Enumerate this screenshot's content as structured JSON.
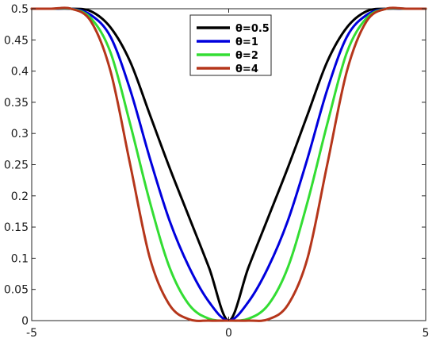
{
  "chart_data": {
    "type": "line",
    "title": "",
    "xlabel": "",
    "ylabel": "",
    "xlim": [
      -5,
      5
    ],
    "ylim": [
      0,
      0.5
    ],
    "x_ticks": [
      "-5",
      "0",
      "5"
    ],
    "y_ticks": [
      "0",
      "0.05",
      "0.1",
      "0.15",
      "0.2",
      "0.25",
      "0.3",
      "0.35",
      "0.4",
      "0.45",
      "0.5"
    ],
    "grid": false,
    "legend_position": "top-center",
    "x": [
      -5,
      -4.5,
      -4,
      -3.5,
      -3,
      -2.5,
      -2,
      -1.5,
      -1,
      -0.5,
      0,
      0.5,
      1,
      1.5,
      2,
      2.5,
      3,
      3.5,
      4,
      4.5,
      5
    ],
    "series": [
      {
        "name": "θ=0.5",
        "color": "#000000",
        "values": [
          0.5,
          0.5,
          0.5,
          0.496,
          0.47,
          0.415,
          0.33,
          0.245,
          0.165,
          0.085,
          0,
          0.085,
          0.165,
          0.245,
          0.33,
          0.415,
          0.47,
          0.496,
          0.5,
          0.5,
          0.5
        ]
      },
      {
        "name": "θ=1",
        "color": "#0000dd",
        "values": [
          0.5,
          0.5,
          0.5,
          0.49,
          0.455,
          0.37,
          0.26,
          0.16,
          0.085,
          0.03,
          0,
          0.03,
          0.085,
          0.16,
          0.26,
          0.37,
          0.455,
          0.49,
          0.5,
          0.5,
          0.5
        ]
      },
      {
        "name": "θ=2",
        "color": "#33dd33",
        "values": [
          0.5,
          0.5,
          0.5,
          0.485,
          0.43,
          0.315,
          0.19,
          0.085,
          0.025,
          0.003,
          0,
          0.003,
          0.025,
          0.085,
          0.19,
          0.315,
          0.43,
          0.485,
          0.5,
          0.5,
          0.5
        ]
      },
      {
        "name": "θ=4",
        "color": "#b5361b",
        "values": [
          0.5,
          0.5,
          0.5,
          0.48,
          0.4,
          0.25,
          0.1,
          0.025,
          0.002,
          0,
          0,
          0,
          0.002,
          0.025,
          0.1,
          0.25,
          0.4,
          0.48,
          0.5,
          0.5,
          0.5
        ]
      }
    ]
  }
}
